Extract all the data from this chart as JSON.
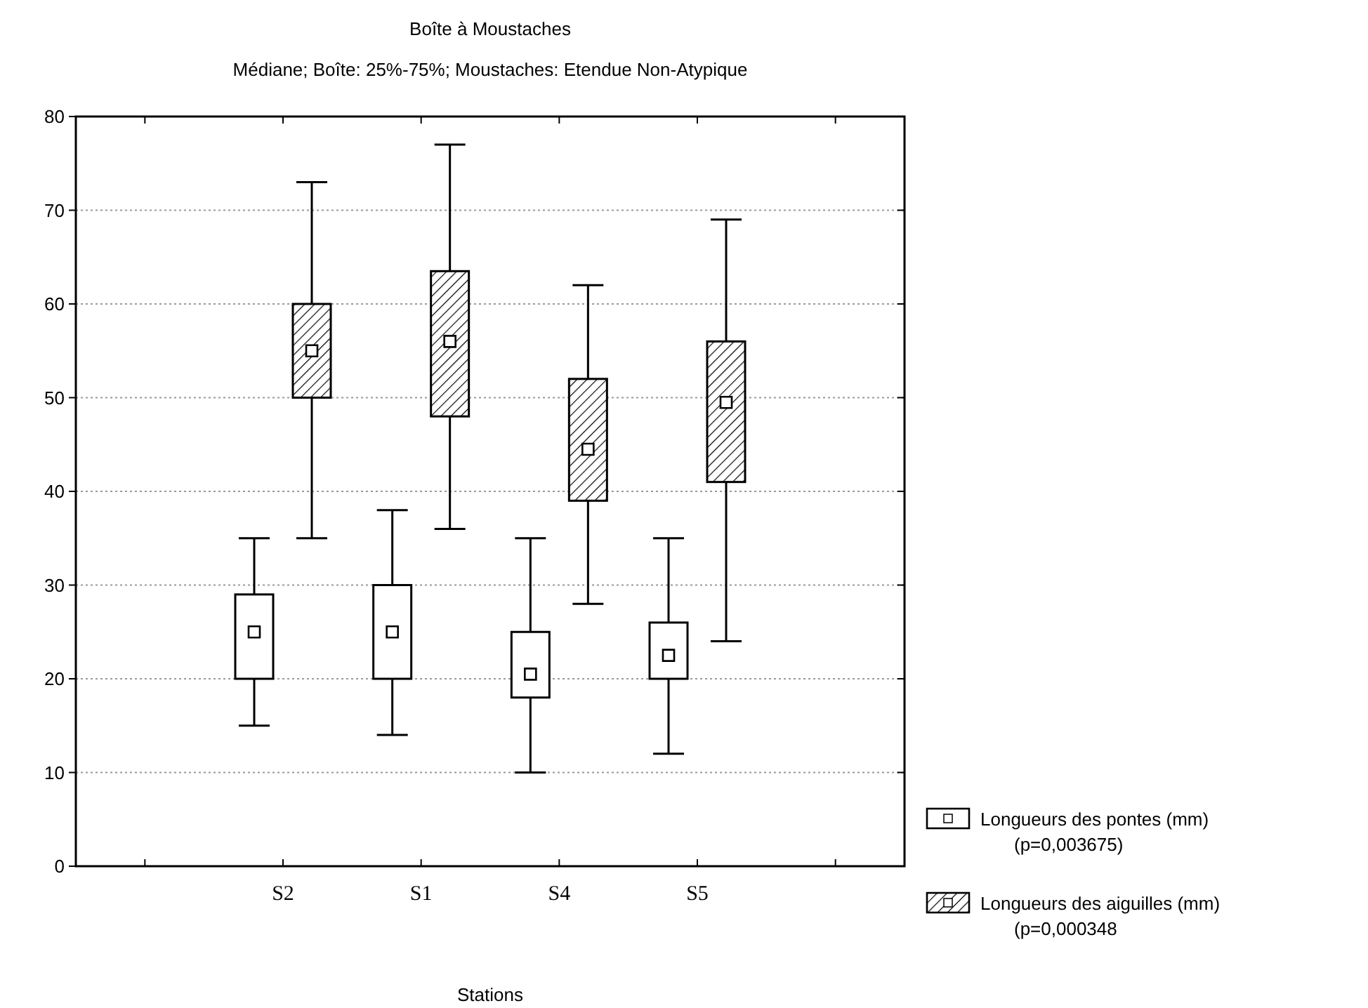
{
  "chart_data": {
    "type": "box",
    "title": "Boîte à Moustaches",
    "subtitle": "Médiane; Boîte: 25%-75%; Moustaches: Etendue Non-Atypique",
    "xlabel": "Stations",
    "categories": [
      null,
      "S2",
      "S1",
      "S4",
      "S5",
      null
    ],
    "ylim": [
      0,
      80
    ],
    "yticks": [
      0,
      10,
      20,
      30,
      40,
      50,
      60,
      70,
      80
    ],
    "grid": "y",
    "legend": "right",
    "marker": "square",
    "series": [
      {
        "name": "Longueurs des pontes (mm)\n(p=0,003675)",
        "color": "#ffffff",
        "boxes": [
          null,
          {
            "low": 15,
            "q1": 20,
            "median": 25,
            "q3": 29,
            "high": 35
          },
          {
            "low": 14,
            "q1": 20,
            "median": 25,
            "q3": 30,
            "high": 38
          },
          {
            "low": 10,
            "q1": 18,
            "median": 20.5,
            "q3": 25,
            "high": 35
          },
          {
            "low": 12,
            "q1": 20,
            "median": 22.5,
            "q3": 26,
            "high": 35
          },
          null
        ]
      },
      {
        "name": "Longueurs des aiguilles (mm)\n(p=0,000348",
        "color": "#000000",
        "boxes": [
          null,
          {
            "low": 35,
            "q1": 50,
            "median": 55,
            "q3": 60,
            "high": 73
          },
          {
            "low": 36,
            "q1": 48,
            "median": 56,
            "q3": 63.5,
            "high": 77
          },
          {
            "low": 28,
            "q1": 39,
            "median": 44.5,
            "q3": 52,
            "high": 62
          },
          {
            "low": 24,
            "q1": 41,
            "median": 49.5,
            "q3": 56,
            "high": 69
          },
          null
        ]
      }
    ]
  }
}
